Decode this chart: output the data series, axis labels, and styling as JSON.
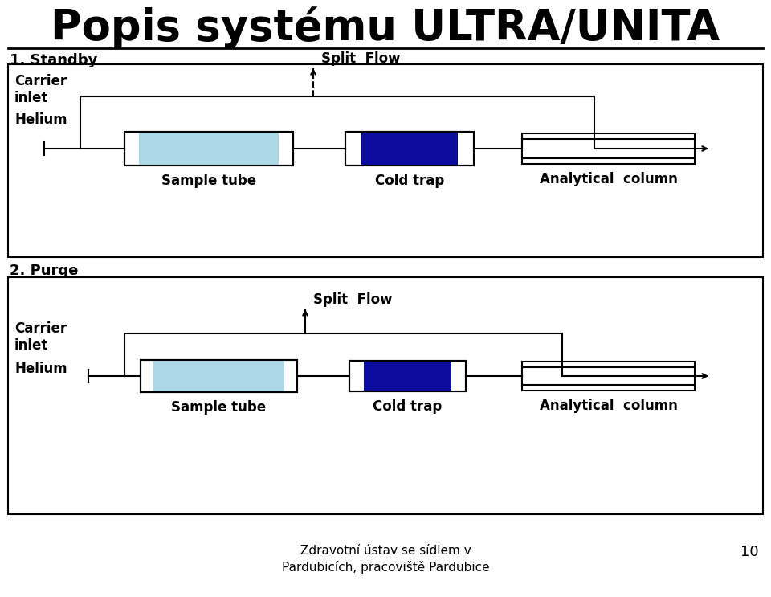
{
  "title": "Popis systému ULTRA/UNITA",
  "title_fontsize": 38,
  "section1_label": "1. Standby",
  "section2_label": "2. Purge",
  "footer_line1": "Zdravotní ústav se sídlem v",
  "footer_line2": "Pardubicích, pracoviště Pardubice",
  "footer_page": "10",
  "carrier_inlet_label": "Carrier\ninlet",
  "helium_label": "Helium",
  "sample_tube_label": "Sample tube",
  "cold_trap_label": "Cold trap",
  "analytical_column_label": "Analytical  column",
  "split_flow_label": "Split  Flow",
  "light_blue": "#ADD8E6",
  "dark_blue": "#0c0c9e",
  "black": "#000000",
  "white": "#FFFFFF",
  "bg": "#FFFFFF",
  "lw": 1.5
}
